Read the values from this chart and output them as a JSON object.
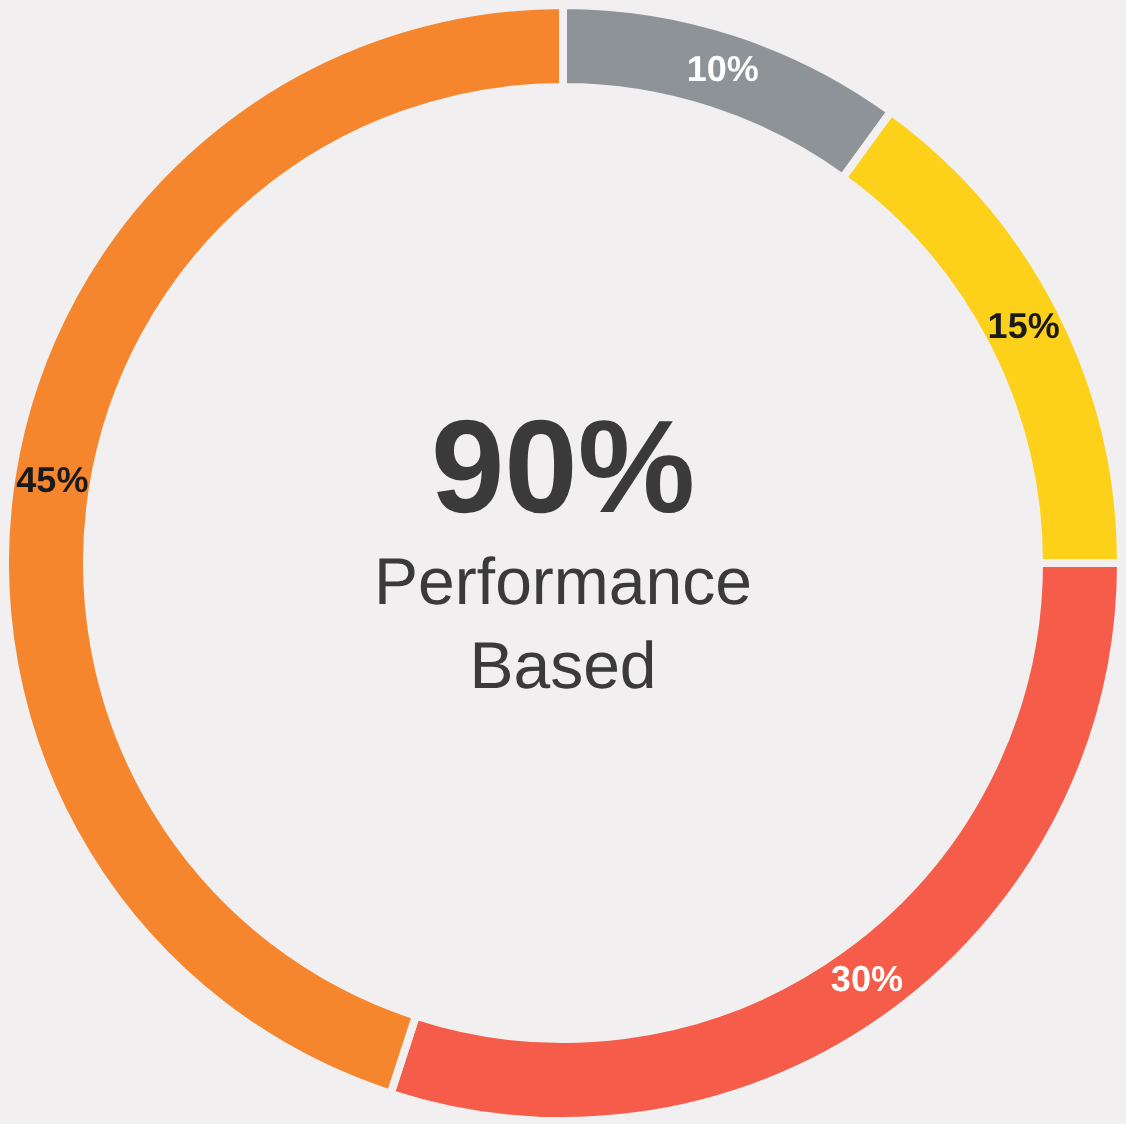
{
  "chart_data": {
    "type": "donut",
    "series": [
      {
        "values": [
          10,
          15,
          30,
          45
        ],
        "colors": [
          "#8e9398",
          "#fdd019",
          "#f55d4a",
          "#f5862e"
        ],
        "value_labels": [
          "10%",
          "15%",
          "30%",
          "45%"
        ]
      }
    ],
    "annotations": [
      "90%",
      "Performance Based"
    ]
  }
}
